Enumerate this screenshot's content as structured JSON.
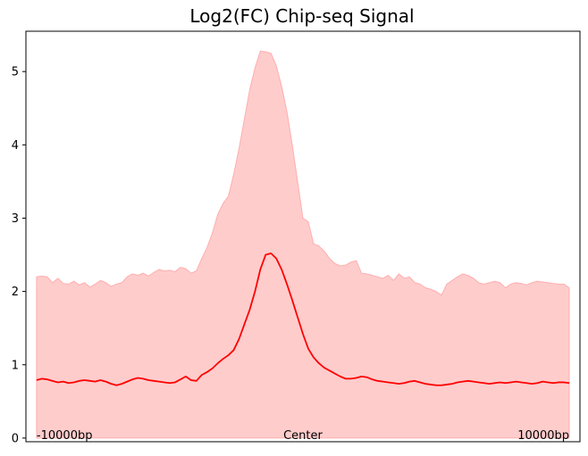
{
  "chart_data": {
    "type": "area",
    "title": "Log2(FC) Chip-seq Signal",
    "xlabel": "",
    "ylabel": "",
    "ylim": [
      -0.05,
      5.55
    ],
    "xlim": [
      -10400,
      10400
    ],
    "grid": false,
    "legend": "none",
    "x_position_labels": [
      {
        "x": -10000,
        "text": "-10000bp"
      },
      {
        "x": 0,
        "text": "Center"
      },
      {
        "x": 10000,
        "text": "10000bp"
      }
    ],
    "yticks": [
      0,
      1,
      2,
      3,
      4,
      5
    ],
    "x": [
      -10000,
      -9800,
      -9600,
      -9400,
      -9200,
      -9000,
      -8800,
      -8600,
      -8400,
      -8200,
      -8000,
      -7800,
      -7600,
      -7400,
      -7200,
      -7000,
      -6800,
      -6600,
      -6400,
      -6200,
      -6000,
      -5800,
      -5600,
      -5400,
      -5200,
      -5000,
      -4800,
      -4600,
      -4400,
      -4200,
      -4000,
      -3800,
      -3600,
      -3400,
      -3200,
      -3000,
      -2800,
      -2600,
      -2400,
      -2200,
      -2000,
      -1800,
      -1600,
      -1400,
      -1200,
      -1000,
      -800,
      -600,
      -400,
      -200,
      0,
      200,
      400,
      600,
      800,
      1000,
      1200,
      1400,
      1600,
      1800,
      2000,
      2200,
      2400,
      2600,
      2800,
      3000,
      3200,
      3400,
      3600,
      3800,
      4000,
      4200,
      4400,
      4600,
      4800,
      5000,
      5200,
      5400,
      5600,
      5800,
      6000,
      6200,
      6400,
      6600,
      6800,
      7000,
      7200,
      7400,
      7600,
      7800,
      8000,
      8200,
      8400,
      8600,
      8800,
      9000,
      9200,
      9400,
      9600,
      9800,
      10000
    ],
    "series": [
      {
        "kind": "line",
        "color": "#ff0000",
        "values": [
          0.79,
          0.81,
          0.8,
          0.78,
          0.76,
          0.77,
          0.75,
          0.76,
          0.78,
          0.79,
          0.78,
          0.77,
          0.79,
          0.77,
          0.74,
          0.72,
          0.74,
          0.77,
          0.8,
          0.82,
          0.81,
          0.79,
          0.78,
          0.77,
          0.76,
          0.75,
          0.76,
          0.8,
          0.84,
          0.79,
          0.78,
          0.86,
          0.9,
          0.95,
          1.02,
          1.08,
          1.13,
          1.2,
          1.35,
          1.55,
          1.75,
          2.0,
          2.3,
          2.5,
          2.52,
          2.45,
          2.3,
          2.1,
          1.88,
          1.65,
          1.42,
          1.22,
          1.1,
          1.02,
          0.96,
          0.92,
          0.88,
          0.84,
          0.81,
          0.81,
          0.82,
          0.84,
          0.83,
          0.8,
          0.78,
          0.77,
          0.76,
          0.75,
          0.74,
          0.75,
          0.77,
          0.78,
          0.76,
          0.74,
          0.73,
          0.72,
          0.72,
          0.73,
          0.74,
          0.76,
          0.77,
          0.78,
          0.77,
          0.76,
          0.75,
          0.74,
          0.75,
          0.76,
          0.75,
          0.76,
          0.77,
          0.76,
          0.75,
          0.74,
          0.75,
          0.77,
          0.76,
          0.75,
          0.76,
          0.76,
          0.75
        ]
      },
      {
        "kind": "band",
        "color": "#ff9999",
        "opacity": 0.5,
        "lower": [
          0,
          0,
          0,
          0,
          0,
          0,
          0,
          0,
          0,
          0,
          0,
          0,
          0,
          0,
          0,
          0,
          0,
          0,
          0,
          0,
          0,
          0,
          0,
          0,
          0,
          0,
          0,
          0,
          0,
          0,
          0,
          0,
          0,
          0,
          0,
          0,
          0,
          0,
          0,
          0,
          0,
          0,
          0,
          0,
          0,
          0,
          0,
          0,
          0,
          0,
          0,
          0,
          0,
          0,
          0,
          0,
          0,
          0,
          0,
          0,
          0,
          0,
          0,
          0,
          0,
          0,
          0,
          0,
          0,
          0,
          0,
          0,
          0,
          0,
          0,
          0,
          0,
          0,
          0,
          0,
          0,
          0,
          0,
          0,
          0,
          0,
          0,
          0,
          0,
          0,
          0,
          0,
          0,
          0,
          0,
          0,
          0,
          0,
          0,
          0,
          0
        ],
        "upper": [
          2.2,
          2.21,
          2.2,
          2.12,
          2.18,
          2.11,
          2.1,
          2.14,
          2.09,
          2.12,
          2.06,
          2.1,
          2.15,
          2.12,
          2.07,
          2.1,
          2.12,
          2.2,
          2.24,
          2.22,
          2.25,
          2.21,
          2.26,
          2.3,
          2.28,
          2.29,
          2.27,
          2.33,
          2.31,
          2.25,
          2.28,
          2.45,
          2.6,
          2.8,
          3.05,
          3.2,
          3.3,
          3.6,
          3.95,
          4.35,
          4.75,
          5.05,
          5.28,
          5.27,
          5.25,
          5.08,
          4.8,
          4.45,
          4.0,
          3.5,
          3.0,
          2.95,
          2.65,
          2.62,
          2.55,
          2.45,
          2.38,
          2.35,
          2.36,
          2.4,
          2.42,
          2.25,
          2.24,
          2.22,
          2.2,
          2.18,
          2.22,
          2.15,
          2.24,
          2.18,
          2.2,
          2.12,
          2.1,
          2.05,
          2.03,
          2.0,
          1.95,
          2.1,
          2.15,
          2.2,
          2.24,
          2.22,
          2.18,
          2.12,
          2.1,
          2.12,
          2.14,
          2.12,
          2.05,
          2.1,
          2.12,
          2.11,
          2.09,
          2.12,
          2.14,
          2.13,
          2.12,
          2.11,
          2.1,
          2.1,
          2.05
        ]
      }
    ]
  }
}
